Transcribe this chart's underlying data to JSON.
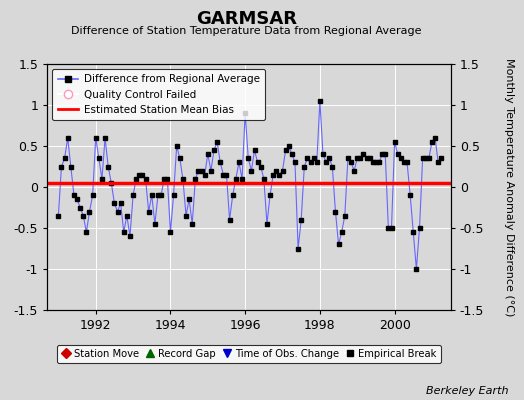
{
  "title": "GARMSAR",
  "subtitle": "Difference of Station Temperature Data from Regional Average",
  "ylabel": "Monthly Temperature Anomaly Difference (°C)",
  "xlim": [
    1990.7,
    2001.5
  ],
  "ylim": [
    -1.5,
    1.5
  ],
  "yticks": [
    -1.5,
    -1.0,
    -0.5,
    0.0,
    0.5,
    1.0,
    1.5
  ],
  "xticks": [
    1992,
    1994,
    1996,
    1998,
    2000
  ],
  "bias_value": 0.05,
  "background_color": "#d8d8d8",
  "plot_bg_color": "#d8d8d8",
  "line_color": "#6666ff",
  "bias_color": "#ff0000",
  "marker_color": "#000000",
  "watermark": "Berkeley Earth",
  "time_values": [
    1991.0,
    1991.083,
    1991.167,
    1991.25,
    1991.333,
    1991.417,
    1991.5,
    1991.583,
    1991.667,
    1991.75,
    1991.833,
    1991.917,
    1992.0,
    1992.083,
    1992.167,
    1992.25,
    1992.333,
    1992.417,
    1992.5,
    1992.583,
    1992.667,
    1992.75,
    1992.833,
    1992.917,
    1993.0,
    1993.083,
    1993.167,
    1993.25,
    1993.333,
    1993.417,
    1993.5,
    1993.583,
    1993.667,
    1993.75,
    1993.833,
    1993.917,
    1994.0,
    1994.083,
    1994.167,
    1994.25,
    1994.333,
    1994.417,
    1994.5,
    1994.583,
    1994.667,
    1994.75,
    1994.833,
    1994.917,
    1995.0,
    1995.083,
    1995.167,
    1995.25,
    1995.333,
    1995.417,
    1995.5,
    1995.583,
    1995.667,
    1995.75,
    1995.833,
    1995.917,
    1996.0,
    1996.083,
    1996.167,
    1996.25,
    1996.333,
    1996.417,
    1996.5,
    1996.583,
    1996.667,
    1996.75,
    1996.833,
    1996.917,
    1997.0,
    1997.083,
    1997.167,
    1997.25,
    1997.333,
    1997.417,
    1997.5,
    1997.583,
    1997.667,
    1997.75,
    1997.833,
    1997.917,
    1998.0,
    1998.083,
    1998.167,
    1998.25,
    1998.333,
    1998.417,
    1998.5,
    1998.583,
    1998.667,
    1998.75,
    1998.833,
    1998.917,
    1999.0,
    1999.083,
    1999.167,
    1999.25,
    1999.333,
    1999.417,
    1999.5,
    1999.583,
    1999.667,
    1999.75,
    1999.833,
    1999.917,
    2000.0,
    2000.083,
    2000.167,
    2000.25,
    2000.333,
    2000.417,
    2000.5,
    2000.583,
    2000.667,
    2000.75,
    2000.833,
    2000.917,
    2001.0,
    2001.083,
    2001.167,
    2001.25
  ],
  "data_values": [
    -0.35,
    0.25,
    0.35,
    0.6,
    0.25,
    -0.1,
    -0.15,
    -0.25,
    -0.35,
    -0.55,
    -0.3,
    -0.1,
    0.6,
    0.35,
    0.1,
    0.6,
    0.25,
    0.05,
    -0.2,
    -0.3,
    -0.2,
    -0.55,
    -0.35,
    -0.6,
    -0.1,
    0.1,
    0.15,
    0.15,
    0.1,
    -0.3,
    -0.1,
    -0.45,
    -0.1,
    -0.1,
    0.1,
    0.1,
    -0.55,
    -0.1,
    0.5,
    0.35,
    0.1,
    -0.35,
    -0.15,
    -0.45,
    0.1,
    0.2,
    0.2,
    0.15,
    0.4,
    0.2,
    0.45,
    0.55,
    0.3,
    0.15,
    0.15,
    -0.4,
    -0.1,
    0.1,
    0.3,
    0.1,
    0.9,
    0.35,
    0.2,
    0.45,
    0.3,
    0.25,
    0.1,
    -0.45,
    -0.1,
    0.15,
    0.2,
    0.15,
    0.2,
    0.45,
    0.5,
    0.4,
    0.3,
    -0.75,
    -0.4,
    0.25,
    0.35,
    0.3,
    0.35,
    0.3,
    1.05,
    0.4,
    0.3,
    0.35,
    0.25,
    -0.3,
    -0.7,
    -0.55,
    -0.35,
    0.35,
    0.3,
    0.2,
    0.35,
    0.35,
    0.4,
    0.35,
    0.35,
    0.3,
    0.3,
    0.3,
    0.4,
    0.4,
    -0.5,
    -0.5,
    0.55,
    0.4,
    0.35,
    0.3,
    0.3,
    -0.1,
    -0.55,
    -1.0,
    -0.5,
    0.35,
    0.35,
    0.35,
    0.55,
    0.6,
    0.3,
    0.35
  ]
}
